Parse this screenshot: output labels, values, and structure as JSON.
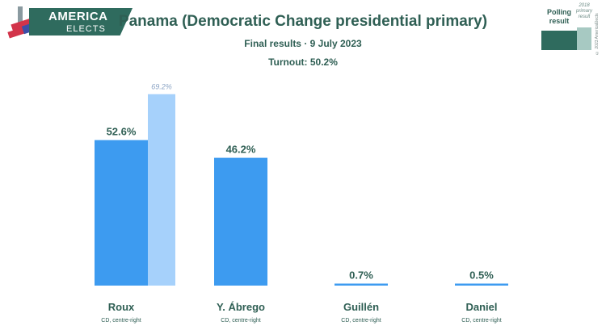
{
  "brand": {
    "line1": "AMERICA",
    "line2": "ELECTS",
    "banner_color": "#2f6b5e"
  },
  "header": {
    "title": "Panama (Democratic Change presidential primary)",
    "subtitle": "Final results · 9 July 2023",
    "turnout": "Turnout: 50.2%"
  },
  "legend": {
    "primary_label": "Polling result",
    "secondary_label": "2018 primary result"
  },
  "copyright": "© 2023 AmericaElects",
  "chart_data": {
    "type": "bar",
    "categories": [
      "Roux",
      "Y. Ábrego",
      "Guillén",
      "Daniel"
    ],
    "category_sublabels": [
      "CD, centre-right",
      "CD, centre-right",
      "CD, centre-right",
      "CD, centre-right"
    ],
    "series": [
      {
        "name": "Polling result",
        "values": [
          52.6,
          46.2,
          0.7,
          0.5
        ],
        "labels": [
          "52.6%",
          "46.2%",
          "0.7%",
          "0.5%"
        ],
        "color": "#3d9bf0"
      },
      {
        "name": "2018 primary result",
        "values": [
          69.2,
          null,
          null,
          null
        ],
        "labels": [
          "69.2%",
          "",
          "",
          ""
        ],
        "color": "#a6d1fb"
      }
    ],
    "ylim": [
      0,
      70
    ],
    "grid": false,
    "legend_position": "top-right"
  }
}
